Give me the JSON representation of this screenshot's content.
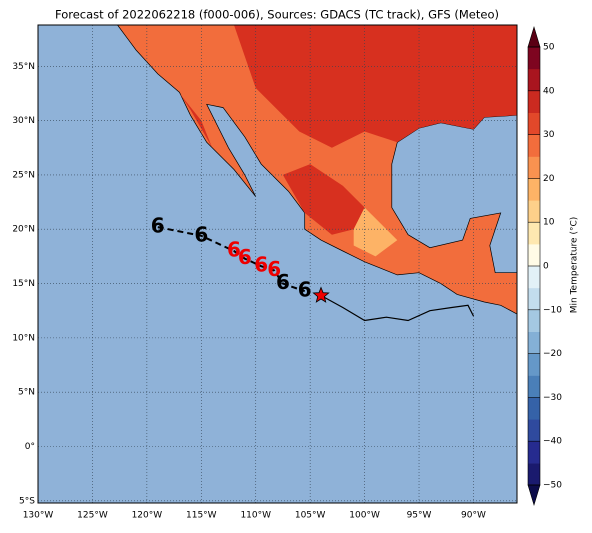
{
  "map": {
    "title": "Forecast of 2022062218 (f000-006), Sources: GDACS (TC track), GFS (Meteo)",
    "xlim": [
      -130,
      -86
    ],
    "ylim": [
      -5.2,
      38.8
    ],
    "lon_ticks": [
      {
        "value": -130,
        "label": "130°W"
      },
      {
        "value": -125,
        "label": "125°W"
      },
      {
        "value": -120,
        "label": "120°W"
      },
      {
        "value": -115,
        "label": "115°W"
      },
      {
        "value": -110,
        "label": "110°W"
      },
      {
        "value": -105,
        "label": "105°W"
      },
      {
        "value": -100,
        "label": "100°W"
      },
      {
        "value": -95,
        "label": "95°W"
      },
      {
        "value": -90,
        "label": "90°W"
      }
    ],
    "lat_ticks": [
      {
        "value": 35,
        "label": "35°N"
      },
      {
        "value": 30,
        "label": "30°N"
      },
      {
        "value": 25,
        "label": "25°N"
      },
      {
        "value": 20,
        "label": "20°N"
      },
      {
        "value": 15,
        "label": "15°N"
      },
      {
        "value": 10,
        "label": "10°N"
      },
      {
        "value": 5,
        "label": "5°N"
      },
      {
        "value": 0,
        "label": "0°"
      },
      {
        "value": -5,
        "label": "5°S"
      }
    ],
    "track_past": {
      "lon": [
        -104,
        -102,
        -100,
        -98,
        -96,
        -94,
        -92,
        -90.5,
        -90
      ],
      "lat": [
        13.9,
        12.8,
        11.6,
        11.9,
        11.6,
        12.5,
        12.8,
        13,
        12
      ]
    },
    "track_forecast": {
      "lon": [
        -119,
        -115,
        -112,
        -111,
        -109.5,
        -108.3,
        -107.5,
        -105.5
      ],
      "lat": [
        20.2,
        19.4,
        18,
        17.3,
        16.6,
        16.2,
        15,
        14.3
      ]
    },
    "current": {
      "lon": -104,
      "lat": 13.9
    },
    "colorbar": {
      "label": "Min Temperature (°C)",
      "lim": [
        -50,
        50
      ],
      "ticks": [
        {
          "value": -50,
          "label": "−50"
        },
        {
          "value": -40,
          "label": "−40"
        },
        {
          "value": -30,
          "label": "−30"
        },
        {
          "value": -20,
          "label": "−20"
        },
        {
          "value": -10,
          "label": "−10"
        },
        0,
        10,
        20,
        30,
        40,
        50
      ],
      "colors": [
        "#1a1a6e",
        "#262b8f",
        "#2f4a9e",
        "#3562a8",
        "#4a7fb8",
        "#6598c8",
        "#84b0d6",
        "#a4c8e2",
        "#c3dded",
        "#e2f1f7",
        "#fffbe6",
        "#fee8b0",
        "#fdd08a",
        "#fdb366",
        "#f99250",
        "#f26d3c",
        "#e2482a",
        "#cb2a20",
        "#a9151f",
        "#7e0520"
      ],
      "under_color": "#0c0c4a",
      "over_color": "#5a0014"
    }
  }
}
